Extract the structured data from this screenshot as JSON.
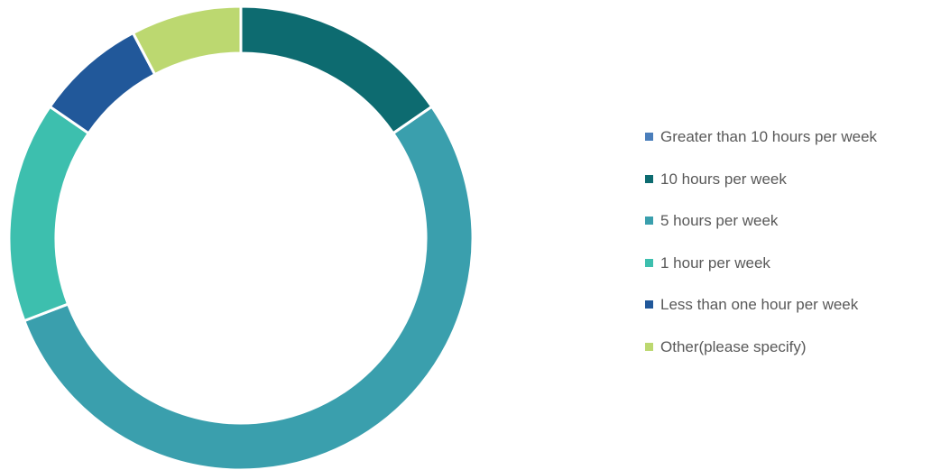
{
  "chart_data": {
    "type": "pie",
    "variant": "donut",
    "title": "",
    "legend_position": "right",
    "slices": [
      {
        "label": "Greater than 10 hours per week",
        "value": 0,
        "color": "#4A7EBB"
      },
      {
        "label": "10 hours per week",
        "value": 15.4,
        "color": "#0D6B70"
      },
      {
        "label": "5 hours per week",
        "value": 53.8,
        "color": "#3A9FAD"
      },
      {
        "label": "1 hour per week",
        "value": 15.4,
        "color": "#3DBFAE"
      },
      {
        "label": "Less than one hour per week",
        "value": 7.7,
        "color": "#21589A"
      },
      {
        "label": "Other(please specify)",
        "value": 7.7,
        "color": "#BCD870"
      }
    ]
  }
}
